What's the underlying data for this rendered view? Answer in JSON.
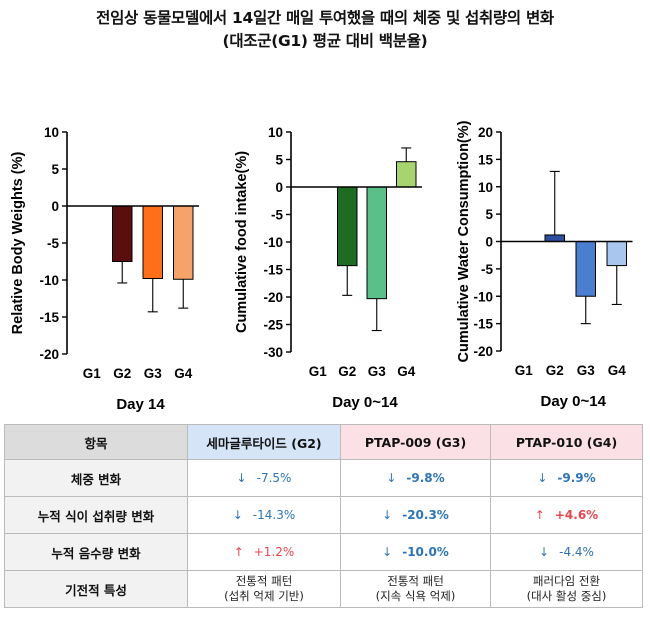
{
  "title": {
    "line1": "전임상 동물모델에서 14일간 매일 투여했을 때의 체중 및 섭취량의 변화",
    "line2": "(대조군(G1) 평균 대비 백분율)"
  },
  "chart_data": [
    {
      "type": "bar",
      "categories": [
        "G1",
        "G2",
        "G3",
        "G4"
      ],
      "values": [
        0,
        -7.5,
        -9.8,
        -9.9
      ],
      "error_bars": [
        0,
        2.9,
        4.5,
        3.9
      ],
      "ylabel": "Relative Body Weights (%)",
      "xlabel": "Day 14",
      "ylim": [
        -20,
        10
      ],
      "yticks": [
        10,
        5,
        0,
        -5,
        -10,
        -15,
        -20
      ],
      "colors": [
        "#ffffff",
        "#5a0f0f",
        "#ff6f1a",
        "#f5a36a"
      ]
    },
    {
      "type": "bar",
      "categories": [
        "G1",
        "G2",
        "G3",
        "G4"
      ],
      "values": [
        0,
        -14.3,
        -20.3,
        4.6
      ],
      "error_bars": [
        0,
        5.4,
        5.8,
        2.5
      ],
      "ylabel": "Cumulative food intake(%)",
      "xlabel": "Day 0~14",
      "ylim": [
        -30,
        10
      ],
      "yticks": [
        10,
        5,
        0,
        -5,
        -10,
        -15,
        -20,
        -25,
        -30
      ],
      "colors": [
        "#ffffff",
        "#1e6b22",
        "#5bbf8a",
        "#a8d46f"
      ]
    },
    {
      "type": "bar",
      "categories": [
        "G1",
        "G2",
        "G3",
        "G4"
      ],
      "values": [
        0,
        1.2,
        -10.0,
        -4.4
      ],
      "error_bars": [
        0,
        11.6,
        5.0,
        7.1
      ],
      "ylabel": "Cumulative Water Consumption(%)",
      "xlabel": "Day 0~14",
      "ylim": [
        -20,
        20
      ],
      "yticks": [
        20,
        15,
        10,
        5,
        0,
        -5,
        -10,
        -15,
        -20
      ],
      "colors": [
        "#ffffff",
        "#2f4f9e",
        "#4a7fd0",
        "#a9c6ef"
      ]
    }
  ],
  "table": {
    "headers": [
      "항목",
      "세마글루타이드 (G2)",
      "PTAP-009 (G3)",
      "PTAP-010 (G4)"
    ],
    "rows": [
      {
        "label": "체중 변화",
        "cells": [
          {
            "arrow": "↓",
            "dir": "down",
            "value": "-7.5%",
            "bold": false
          },
          {
            "arrow": "↓",
            "dir": "down",
            "value": "-9.8%",
            "bold": true
          },
          {
            "arrow": "↓",
            "dir": "down",
            "value": "-9.9%",
            "bold": true
          }
        ]
      },
      {
        "label": "누적 식이 섭취량 변화",
        "cells": [
          {
            "arrow": "↓",
            "dir": "down",
            "value": "-14.3%",
            "bold": false
          },
          {
            "arrow": "↓",
            "dir": "down",
            "value": "-20.3%",
            "bold": true
          },
          {
            "arrow": "↑",
            "dir": "up",
            "value": "+4.6%",
            "bold": true
          }
        ]
      },
      {
        "label": "누적 음수량 변화",
        "cells": [
          {
            "arrow": "↑",
            "dir": "up",
            "value": "+1.2%",
            "bold": false
          },
          {
            "arrow": "↓",
            "dir": "down",
            "value": "-10.0%",
            "bold": true
          },
          {
            "arrow": "↓",
            "dir": "down",
            "value": "-4.4%",
            "bold": false
          }
        ]
      }
    ],
    "mechanism": {
      "label": "기전적 특성",
      "cells": [
        {
          "line1": "전통적 패턴",
          "line2": "(섭취 억제 기반)"
        },
        {
          "line1": "전통적 패턴",
          "line2": "(지속 식욕 억제)"
        },
        {
          "line1": "패러다임 전환",
          "line2": "(대사 활성 중심)"
        }
      ]
    }
  }
}
